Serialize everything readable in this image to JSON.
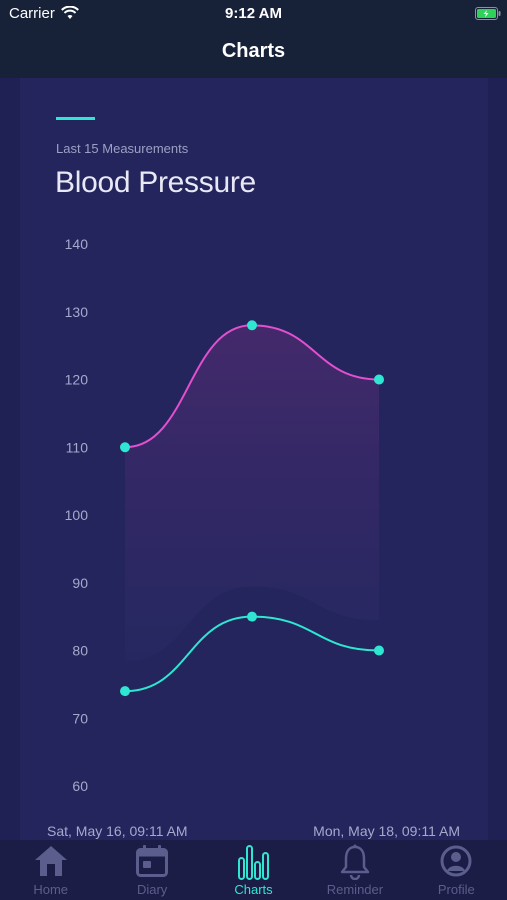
{
  "status_bar": {
    "carrier": "Carrier",
    "time": "9:12 AM"
  },
  "header": {
    "title": "Charts"
  },
  "card": {
    "subtitle": "Last 15 Measurements",
    "title": "Blood Pressure"
  },
  "chart_data": {
    "type": "line",
    "title": "Blood Pressure",
    "subtitle": "Last 15 Measurements",
    "x": [
      "Sat, May 16, 09:11 AM",
      "",
      "Mon, May 18, 09:11 AM"
    ],
    "x_tick_labels": [
      "Sat, May 16, 09:11 AM",
      "Mon, May 18, 09:11 AM"
    ],
    "y_ticks": [
      140,
      130,
      120,
      110,
      100,
      90,
      80,
      70,
      60
    ],
    "ylim": [
      60,
      140
    ],
    "series": [
      {
        "values": [
          110,
          128,
          120
        ],
        "color": "#e24fcf"
      },
      {
        "values": [
          74,
          85,
          80
        ],
        "color": "#2ee6d2"
      }
    ],
    "point_color": "#2ee6d2",
    "fill_between": true,
    "grid": false
  },
  "tabbar": {
    "items": [
      {
        "label": "Home",
        "icon": "home-icon",
        "active": false
      },
      {
        "label": "Diary",
        "icon": "calendar-icon",
        "active": false
      },
      {
        "label": "Charts",
        "icon": "bar-chart-icon",
        "active": true
      },
      {
        "label": "Reminder",
        "icon": "bell-icon",
        "active": false
      },
      {
        "label": "Profile",
        "icon": "person-icon",
        "active": false
      }
    ]
  },
  "colors": {
    "background": "#1f2154",
    "header": "#172138",
    "card": "#23255c",
    "accent": "#2ee6d2",
    "systolic": "#e24fcf",
    "tab_inactive": "#5b5e8c"
  }
}
